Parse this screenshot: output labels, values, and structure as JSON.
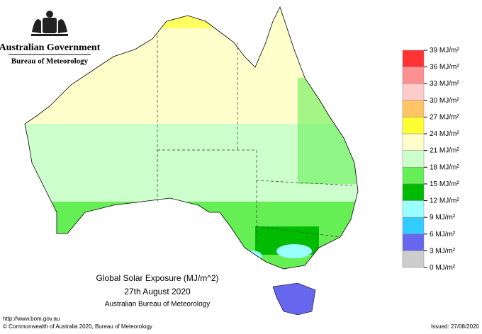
{
  "header": {
    "government": "Australian Government",
    "agency": "Bureau of Meteorology"
  },
  "map": {
    "title": "Global Solar Exposure (MJ/m^2)",
    "date": "27th August 2020",
    "source": "Australian Bureau of Meteorology"
  },
  "legend": {
    "unit": "MJ/m²",
    "values": [
      39,
      36,
      33,
      30,
      27,
      24,
      21,
      18,
      15,
      12,
      9,
      6,
      3,
      0
    ],
    "colors": [
      "#ff3333",
      "#ff9090",
      "#ffcccc",
      "#ffc466",
      "#ffff33",
      "#ffffcc",
      "#ccffcc",
      "#66ee55",
      "#00bb00",
      "#99ffff",
      "#33ccff",
      "#6666ee",
      "#cccccc"
    ]
  },
  "footer": {
    "url": "http://www.bom.gov.au",
    "copyright": "© Commonwealth of Australia 2020, Bureau of Meteorology",
    "issued": "Issued: 27/08/2020"
  }
}
